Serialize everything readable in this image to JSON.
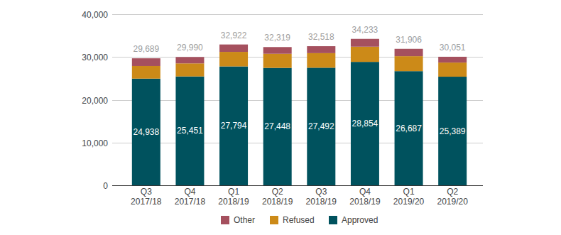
{
  "chart_data": {
    "type": "bar",
    "stacked": true,
    "grid": true,
    "legend": "bottom",
    "data_labels": true,
    "categories": [
      "Q3 2017/18",
      "Q4 2017/18",
      "Q1 2018/19",
      "Q2 2018/19",
      "Q3 2018/19",
      "Q4 2018/19",
      "Q1 2019/20",
      "Q2 2019/20"
    ],
    "series": [
      {
        "name": "Approved",
        "color": "#00525e",
        "values": [
          24938,
          25451,
          27794,
          27448,
          27492,
          28854,
          26687,
          25389
        ],
        "value_labels": [
          "24,938",
          "25,451",
          "27,794",
          "27,448",
          "27,492",
          "28,854",
          "26,687",
          "25,389"
        ]
      },
      {
        "name": "Refused",
        "color": "#cc8a18",
        "values": [
          2950,
          3050,
          3400,
          3300,
          3400,
          3550,
          3500,
          3300
        ]
      },
      {
        "name": "Other",
        "color": "#a5505e",
        "values": [
          1801,
          1489,
          1728,
          1571,
          1626,
          1829,
          1719,
          1362
        ]
      }
    ],
    "totals": [
      29689,
      29990,
      32922,
      32319,
      32518,
      34233,
      31906,
      30051
    ],
    "total_labels": [
      "29,689",
      "29,990",
      "32,922",
      "32,319",
      "32,518",
      "34,233",
      "31,906",
      "30,051"
    ],
    "ylim": [
      0,
      40000
    ],
    "yticks": [
      0,
      {
        "value": 10000,
        "label": "10,000"
      },
      {
        "value": 20000,
        "label": "20,000"
      },
      {
        "value": 30000,
        "label": "30,000"
      },
      {
        "value": 40000,
        "label": "40,000"
      }
    ]
  }
}
